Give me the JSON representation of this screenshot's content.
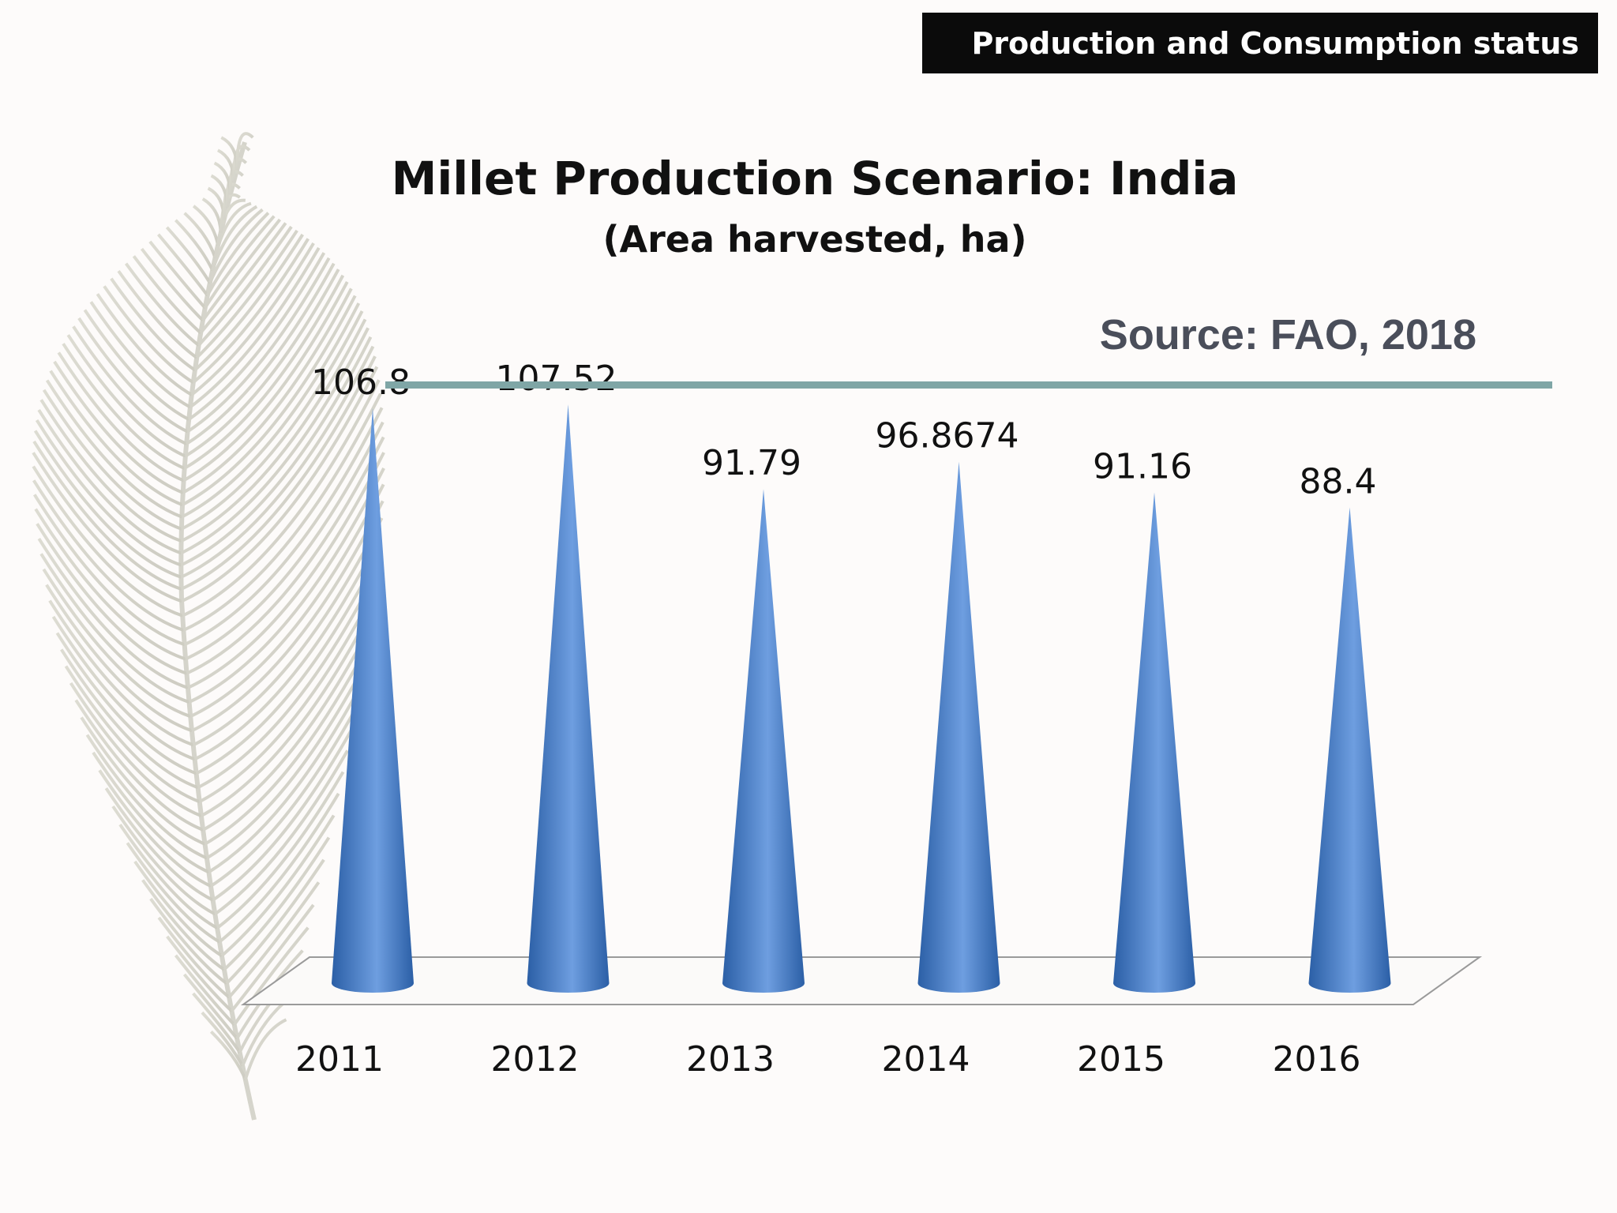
{
  "header": {
    "title": "Production and Consumption status"
  },
  "source": {
    "text": "Source: FAO, 2018"
  },
  "colors": {
    "cone_dark": "#2b5fa6",
    "cone_light": "#6e9ee0",
    "header_bg": "#0b0b0b",
    "source_line": "#7fa6a6"
  },
  "chart_data": {
    "type": "bar",
    "title": "Millet Production Scenario: India",
    "subtitle": "(Area harvested, ha)",
    "categories": [
      "2011",
      "2012",
      "2013",
      "2014",
      "2015",
      "2016"
    ],
    "values": [
      106.8,
      107.52,
      91.79,
      96.8674,
      91.16,
      88.4
    ],
    "data_labels": [
      "106.8",
      "107.52",
      "91.79",
      "96.8674",
      "91.16",
      "88.4"
    ],
    "bar_shape": "cone",
    "ylim": [
      0,
      113
    ],
    "grid": false
  }
}
